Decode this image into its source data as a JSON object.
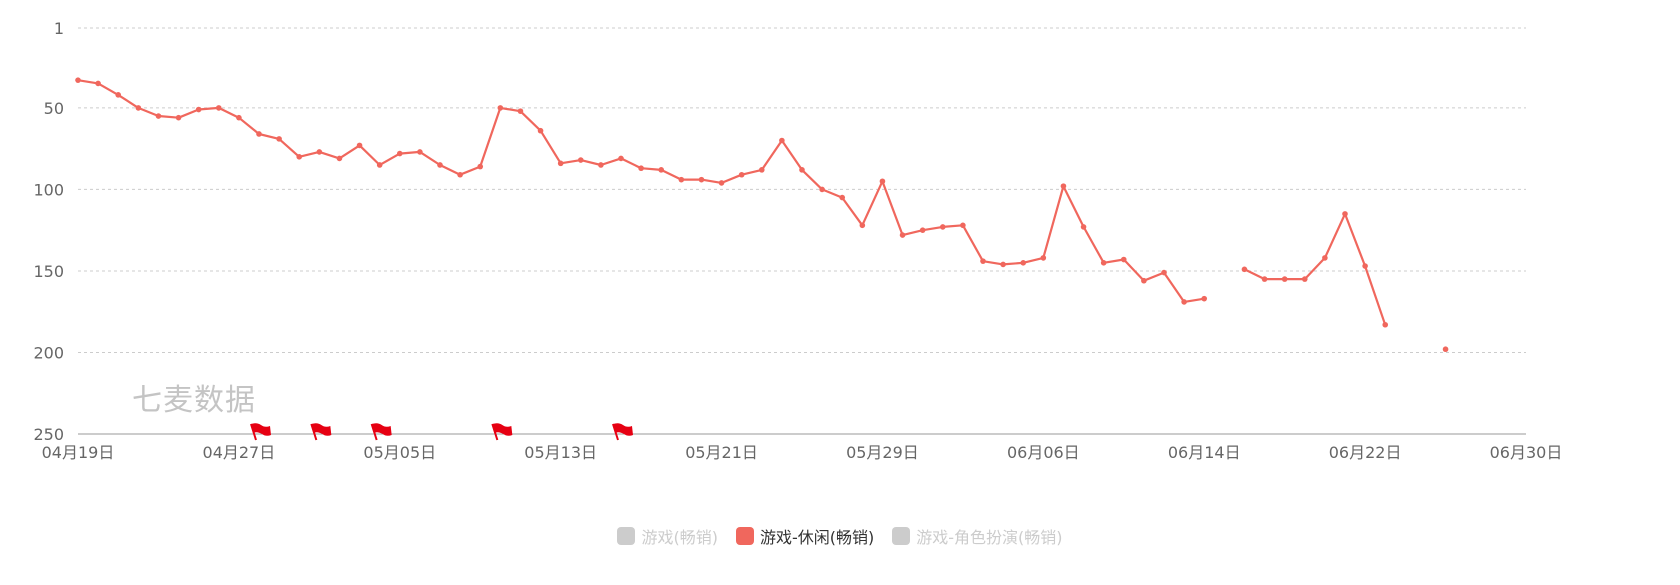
{
  "watermark": "七麦数据",
  "colors": {
    "active_series": "#f0675d",
    "inactive_legend": "#cccccc",
    "flag": "#e60012",
    "grid": "#cccccc",
    "tick_text": "#666666"
  },
  "legend": [
    {
      "label": "游戏(畅销)",
      "active": false
    },
    {
      "label": "游戏-休闲(畅销)",
      "active": true
    },
    {
      "label": "游戏-角色扮演(畅销)",
      "active": false
    }
  ],
  "chart_data": {
    "type": "line",
    "title": "",
    "xlabel": "",
    "ylabel": "",
    "y_inverted": true,
    "ylim": [
      1,
      250
    ],
    "y_ticks": [
      1,
      50,
      100,
      150,
      200,
      250
    ],
    "x_range": [
      "2024-04-19",
      "2024-06-30"
    ],
    "x_ticks": [
      "04月19日",
      "04月27日",
      "05月05日",
      "05月13日",
      "05月21日",
      "05月29日",
      "06月06日",
      "06月14日",
      "06月22日",
      "06月30日"
    ],
    "grid": true,
    "legend_position": "bottom",
    "flag_dates": [
      "2024-04-28",
      "2024-05-01",
      "2024-05-04",
      "2024-05-10",
      "2024-05-16"
    ],
    "series": [
      {
        "name": "游戏-休闲(畅销)",
        "active": true,
        "points": [
          [
            "2024-04-19",
            33
          ],
          [
            "2024-04-20",
            35
          ],
          [
            "2024-04-21",
            42
          ],
          [
            "2024-04-22",
            50
          ],
          [
            "2024-04-23",
            55
          ],
          [
            "2024-04-24",
            56
          ],
          [
            "2024-04-25",
            51
          ],
          [
            "2024-04-26",
            50
          ],
          [
            "2024-04-27",
            56
          ],
          [
            "2024-04-28",
            66
          ],
          [
            "2024-04-29",
            69
          ],
          [
            "2024-04-30",
            80
          ],
          [
            "2024-05-01",
            77
          ],
          [
            "2024-05-02",
            81
          ],
          [
            "2024-05-03",
            73
          ],
          [
            "2024-05-04",
            85
          ],
          [
            "2024-05-05",
            78
          ],
          [
            "2024-05-06",
            77
          ],
          [
            "2024-05-07",
            85
          ],
          [
            "2024-05-08",
            91
          ],
          [
            "2024-05-09",
            86
          ],
          [
            "2024-05-10",
            50
          ],
          [
            "2024-05-11",
            52
          ],
          [
            "2024-05-12",
            64
          ],
          [
            "2024-05-13",
            84
          ],
          [
            "2024-05-14",
            82
          ],
          [
            "2024-05-15",
            85
          ],
          [
            "2024-05-16",
            81
          ],
          [
            "2024-05-17",
            87
          ],
          [
            "2024-05-18",
            88
          ],
          [
            "2024-05-19",
            94
          ],
          [
            "2024-05-20",
            94
          ],
          [
            "2024-05-21",
            96
          ],
          [
            "2024-05-22",
            91
          ],
          [
            "2024-05-23",
            88
          ],
          [
            "2024-05-24",
            70
          ],
          [
            "2024-05-25",
            88
          ],
          [
            "2024-05-26",
            100
          ],
          [
            "2024-05-27",
            105
          ],
          [
            "2024-05-28",
            122
          ],
          [
            "2024-05-29",
            95
          ],
          [
            "2024-05-30",
            128
          ],
          [
            "2024-05-31",
            125
          ],
          [
            "2024-06-01",
            123
          ],
          [
            "2024-06-02",
            122
          ],
          [
            "2024-06-03",
            144
          ],
          [
            "2024-06-04",
            146
          ],
          [
            "2024-06-05",
            145
          ],
          [
            "2024-06-06",
            142
          ],
          [
            "2024-06-07",
            98
          ],
          [
            "2024-06-08",
            123
          ],
          [
            "2024-06-09",
            145
          ],
          [
            "2024-06-10",
            143
          ],
          [
            "2024-06-11",
            156
          ],
          [
            "2024-06-12",
            151
          ],
          [
            "2024-06-13",
            169
          ],
          [
            "2024-06-14",
            167
          ],
          [
            "2024-06-15",
            null
          ],
          [
            "2024-06-16",
            149
          ],
          [
            "2024-06-17",
            155
          ],
          [
            "2024-06-18",
            155
          ],
          [
            "2024-06-19",
            155
          ],
          [
            "2024-06-20",
            142
          ],
          [
            "2024-06-21",
            115
          ],
          [
            "2024-06-22",
            147
          ],
          [
            "2024-06-23",
            183
          ],
          [
            "2024-06-24",
            null
          ],
          [
            "2024-06-25",
            null
          ],
          [
            "2024-06-26",
            198
          ]
        ]
      }
    ]
  }
}
